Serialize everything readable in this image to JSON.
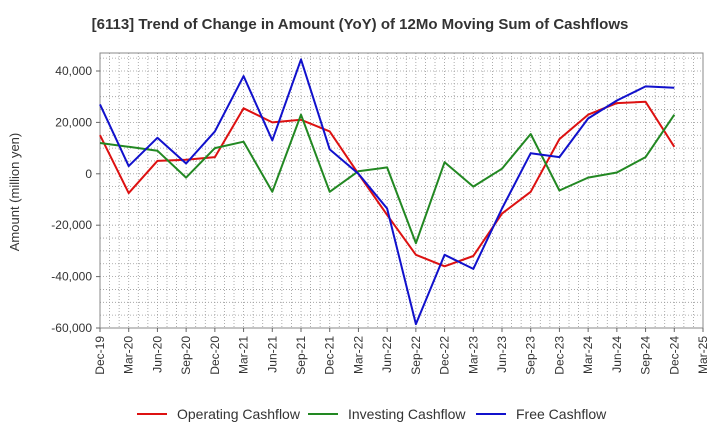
{
  "chart_data": {
    "type": "line",
    "title": "[6113]  Trend of Change in Amount (YoY) of 12Mo Moving Sum of Cashflows",
    "xlabel": "",
    "ylabel": "Amount (million yen)",
    "categories": [
      "Dec-19",
      "Mar-20",
      "Jun-20",
      "Sep-20",
      "Dec-20",
      "Mar-21",
      "Jun-21",
      "Sep-21",
      "Dec-21",
      "Mar-22",
      "Jun-22",
      "Sep-22",
      "Dec-22",
      "Mar-23",
      "Jun-23",
      "Sep-23",
      "Dec-23",
      "Mar-24",
      "Jun-24",
      "Sep-24",
      "Dec-24",
      "Mar-25"
    ],
    "ylim": [
      -60000,
      47000
    ],
    "yticks": [
      -60000,
      -40000,
      -20000,
      0,
      20000,
      40000
    ],
    "ytick_labels": [
      "-60,000",
      "-40,000",
      "-20,000",
      "0",
      "20,000",
      "40,000"
    ],
    "grid": true,
    "legend_position": "bottom",
    "series": [
      {
        "name": "Operating Cashflow",
        "color": "#dd1111",
        "values": [
          15000,
          -7500,
          5000,
          5500,
          6500,
          25500,
          20000,
          21000,
          16500,
          0,
          -16000,
          -31500,
          -36000,
          -32000,
          -15500,
          -7000,
          13500,
          23000,
          27500,
          28000,
          10500,
          null
        ]
      },
      {
        "name": "Investing Cashflow",
        "color": "#228822",
        "values": [
          12000,
          10500,
          9000,
          -1500,
          10000,
          12500,
          -7000,
          23000,
          -7000,
          1000,
          2500,
          -27000,
          4500,
          -5000,
          2000,
          15500,
          -6500,
          -1500,
          500,
          6500,
          23000,
          null
        ]
      },
      {
        "name": "Free Cashflow",
        "color": "#1111cc",
        "values": [
          27000,
          3000,
          14000,
          4000,
          16500,
          38000,
          13000,
          44500,
          9500,
          0,
          -13500,
          -58500,
          -31500,
          -37000,
          -13500,
          8000,
          6500,
          21500,
          28500,
          34000,
          33500,
          null
        ]
      }
    ]
  }
}
